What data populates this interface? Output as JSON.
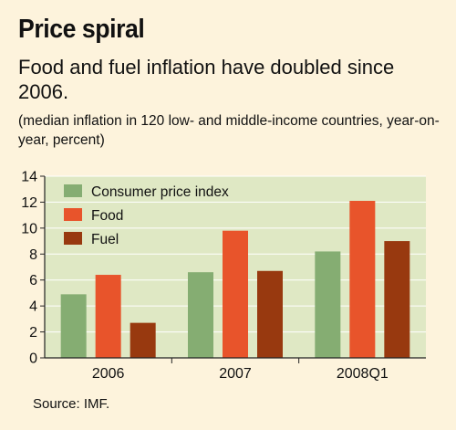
{
  "title": "Price spiral",
  "subtitle": "Food and fuel inflation have doubled since 2006.",
  "note": "(median inflation in 120 low- and middle-income countries, year-on-year, percent)",
  "source": "Source: IMF.",
  "colors": {
    "background": "#fdf3dc",
    "plot_background": "#dfe8c4",
    "grid": "#ffffff",
    "cpi": "#85ad72",
    "food": "#e8542b",
    "fuel": "#98390f"
  },
  "chart_data": {
    "type": "bar",
    "categories": [
      "2006",
      "2007",
      "2008Q1"
    ],
    "series": [
      {
        "name": "Consumer price index",
        "values": [
          4.9,
          6.6,
          8.2
        ]
      },
      {
        "name": "Food",
        "values": [
          6.4,
          9.8,
          12.1
        ]
      },
      {
        "name": "Fuel",
        "values": [
          2.7,
          6.7,
          9.0
        ]
      }
    ],
    "ylim": [
      0,
      14
    ],
    "yticks": [
      "0",
      "2",
      "4",
      "6",
      "8",
      "10",
      "12",
      "14"
    ],
    "grid": true,
    "legend": "top-left"
  }
}
